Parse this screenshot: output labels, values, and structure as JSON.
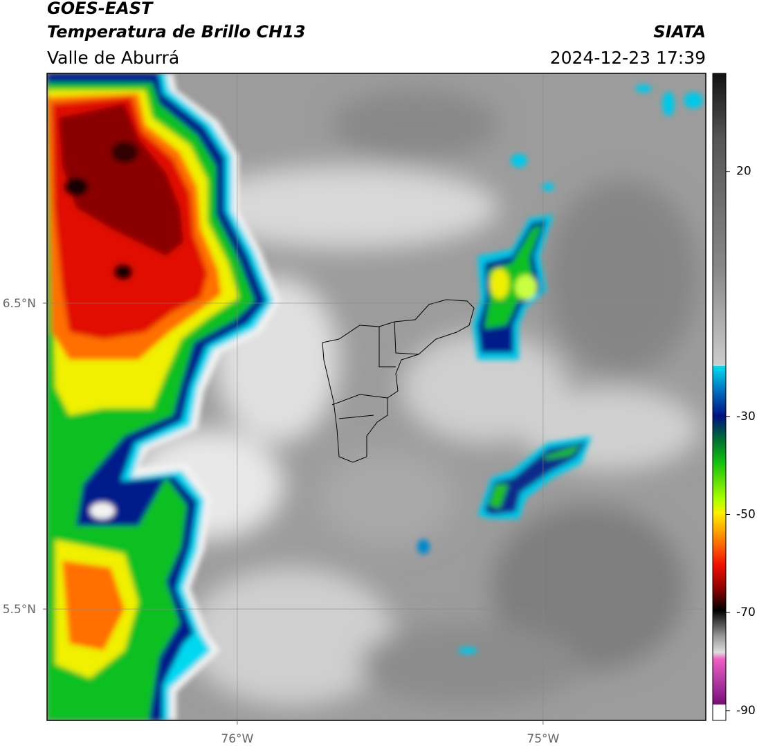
{
  "header": {
    "title": "GOES-EAST",
    "subtitle": "Temperatura de Brillo CH13",
    "region": "Valle de Aburrá",
    "source": "SIATA",
    "datetime": "2024-12-23 17:39"
  },
  "map": {
    "xlim": [
      -76.622,
      -74.468
    ],
    "ylim": [
      5.136,
      7.251
    ],
    "xticks": [
      {
        "value": -76,
        "label": "76°W"
      },
      {
        "value": -75,
        "label": "75°W"
      }
    ],
    "yticks": [
      {
        "value": 6.5,
        "label": "6.5°N"
      },
      {
        "value": 5.5,
        "label": "5.5°N"
      }
    ],
    "grid": true
  },
  "colorbar": {
    "lim": [
      -92,
      40
    ],
    "ticks": [
      20,
      -30,
      -50,
      -70,
      -90
    ]
  }
}
